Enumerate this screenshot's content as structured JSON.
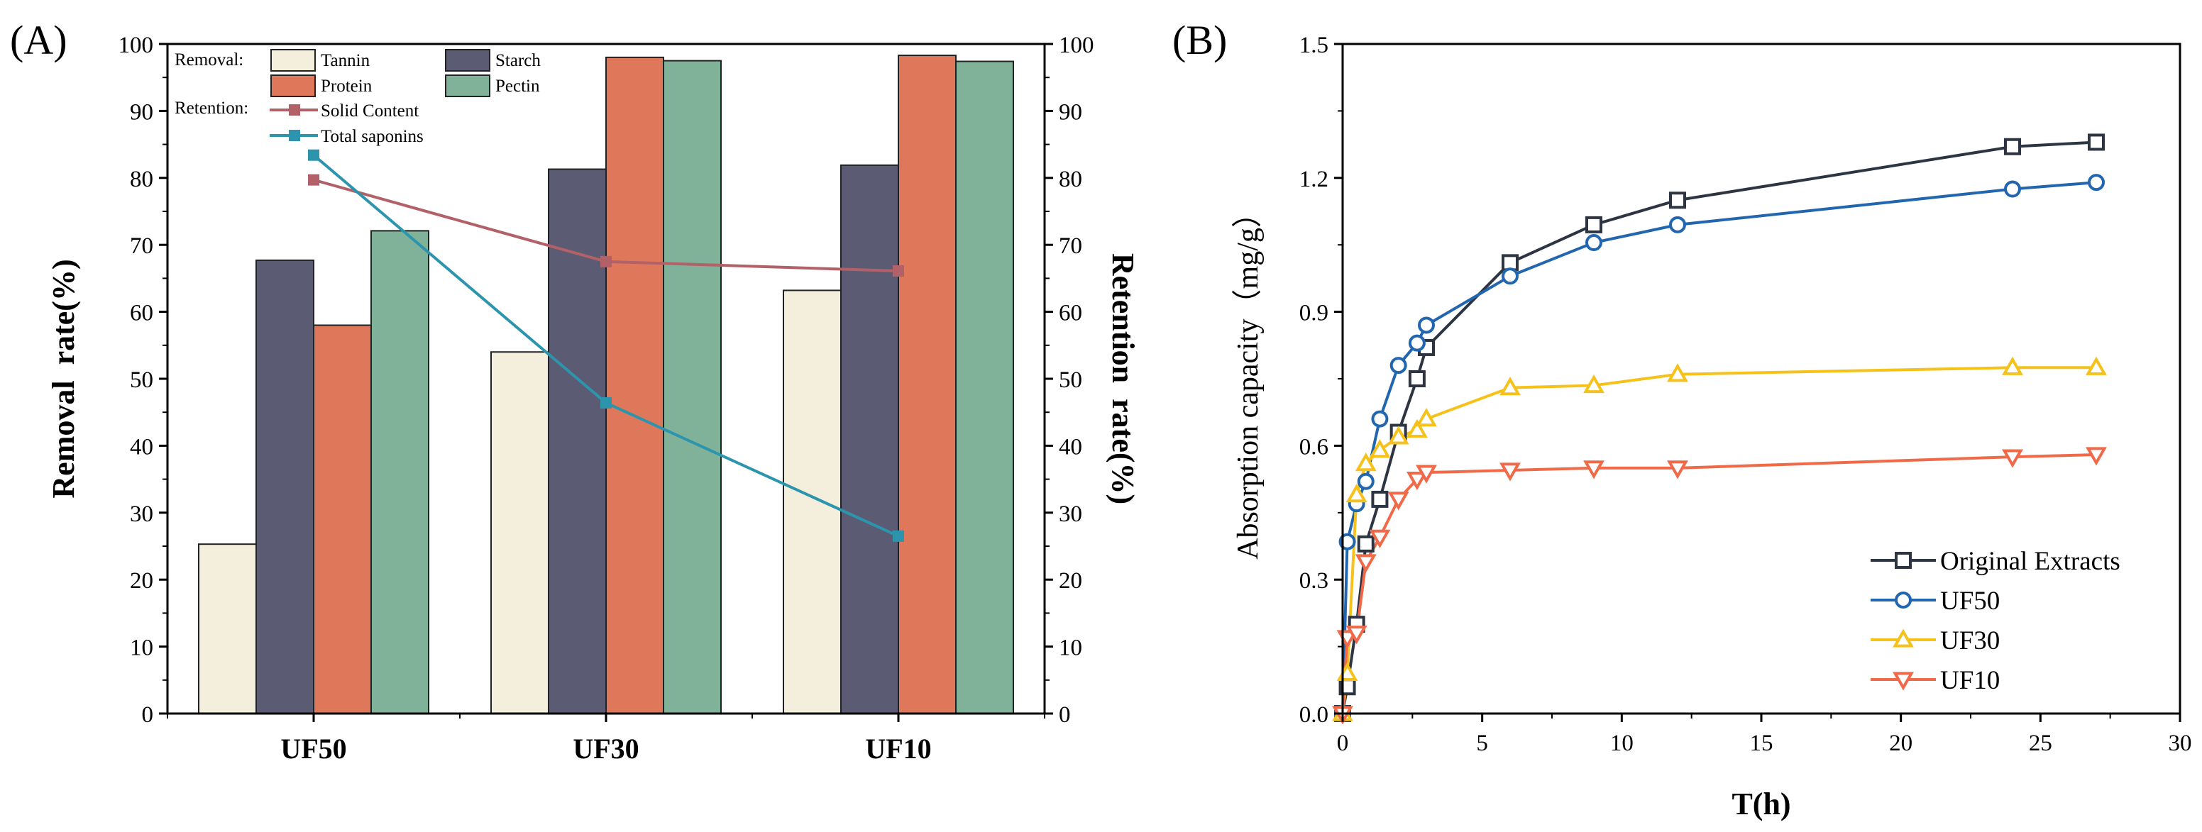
{
  "colors": {
    "tannin": "#f3efdc",
    "starch": "#5b5b73",
    "protein": "#df775a",
    "pectin": "#80b29a",
    "solid_content": "#b36168",
    "total_saponins": "#2c95ad",
    "original": "#2d3542",
    "uf50": "#2166ae",
    "uf30": "#f5c21b",
    "uf10": "#f06a4a"
  },
  "chart_data": [
    {
      "type": "bar",
      "panel_label": "(A)",
      "title": "",
      "categories": [
        "UF50",
        "UF30",
        "UF10"
      ],
      "xlabel": "",
      "ylabel": "Removal  rate(%)",
      "y2label": "Retention  rate(%)",
      "ylim": [
        0,
        100
      ],
      "y2lim": [
        0,
        100
      ],
      "yticks": [
        0,
        10,
        20,
        30,
        40,
        50,
        60,
        70,
        80,
        90,
        100
      ],
      "series": [
        {
          "name": "Tannin",
          "key": "tannin",
          "values": [
            25.3,
            54,
            63.2
          ]
        },
        {
          "name": "Starch",
          "key": "starch",
          "values": [
            67.7,
            81.3,
            81.9
          ]
        },
        {
          "name": "Protein",
          "key": "protein",
          "values": [
            58,
            98,
            98.3
          ]
        },
        {
          "name": "Pectin",
          "key": "pectin",
          "values": [
            72.1,
            97.5,
            97.4
          ]
        }
      ],
      "line_series": [
        {
          "name": "Solid Content",
          "key": "solid_content",
          "axis": "right",
          "values": [
            79.7,
            67.5,
            66.1
          ]
        },
        {
          "name": "Total saponins",
          "key": "total_saponins",
          "axis": "right",
          "values": [
            83.4,
            46.4,
            26.5
          ]
        }
      ],
      "legend": {
        "removal_label": "Removal:",
        "retention_label": "Retention:",
        "position": "top-left"
      }
    },
    {
      "type": "line",
      "panel_label": "(B)",
      "title": "",
      "xlabel": "T(h)",
      "ylabel": "Absorption capacity（mg/g）",
      "xlim": [
        0,
        30
      ],
      "ylim": [
        0,
        1.5
      ],
      "xticks": [
        0,
        5,
        10,
        15,
        20,
        25,
        30
      ],
      "yticks": [
        "0.0",
        "0.3",
        "0.6",
        "0.9",
        "1.2",
        "1.5"
      ],
      "series": [
        {
          "name": "Original Extracts",
          "key": "original",
          "marker": "square",
          "x": [
            0,
            0.167,
            0.5,
            0.833,
            1.333,
            2,
            2.667,
            3,
            6,
            9,
            12,
            24,
            27
          ],
          "y": [
            0,
            0.06,
            0.2,
            0.38,
            0.48,
            0.63,
            0.75,
            0.82,
            1.01,
            1.095,
            1.15,
            1.27,
            1.28
          ]
        },
        {
          "name": "UF50",
          "key": "uf50",
          "marker": "circle",
          "x": [
            0,
            0.167,
            0.5,
            0.833,
            1.333,
            2,
            2.667,
            3,
            6,
            9,
            12,
            24,
            27
          ],
          "y": [
            0,
            0.385,
            0.47,
            0.52,
            0.66,
            0.78,
            0.83,
            0.87,
            0.98,
            1.055,
            1.095,
            1.175,
            1.19
          ]
        },
        {
          "name": "UF30",
          "key": "uf30",
          "marker": "triangle-up",
          "x": [
            0,
            0.167,
            0.5,
            0.833,
            1.333,
            2,
            2.667,
            3,
            6,
            9,
            12,
            24,
            27
          ],
          "y": [
            0,
            0.09,
            0.49,
            0.56,
            0.59,
            0.62,
            0.635,
            0.66,
            0.73,
            0.735,
            0.76,
            0.775,
            0.775
          ]
        },
        {
          "name": "UF10",
          "key": "uf10",
          "marker": "triangle-down",
          "x": [
            0,
            0.167,
            0.5,
            0.833,
            1.333,
            2,
            2.667,
            3,
            6,
            9,
            12,
            24,
            27
          ],
          "y": [
            0,
            0.17,
            0.18,
            0.34,
            0.395,
            0.48,
            0.525,
            0.54,
            0.545,
            0.55,
            0.55,
            0.575,
            0.58
          ]
        }
      ],
      "legend": {
        "position": "bottom-right"
      }
    }
  ]
}
